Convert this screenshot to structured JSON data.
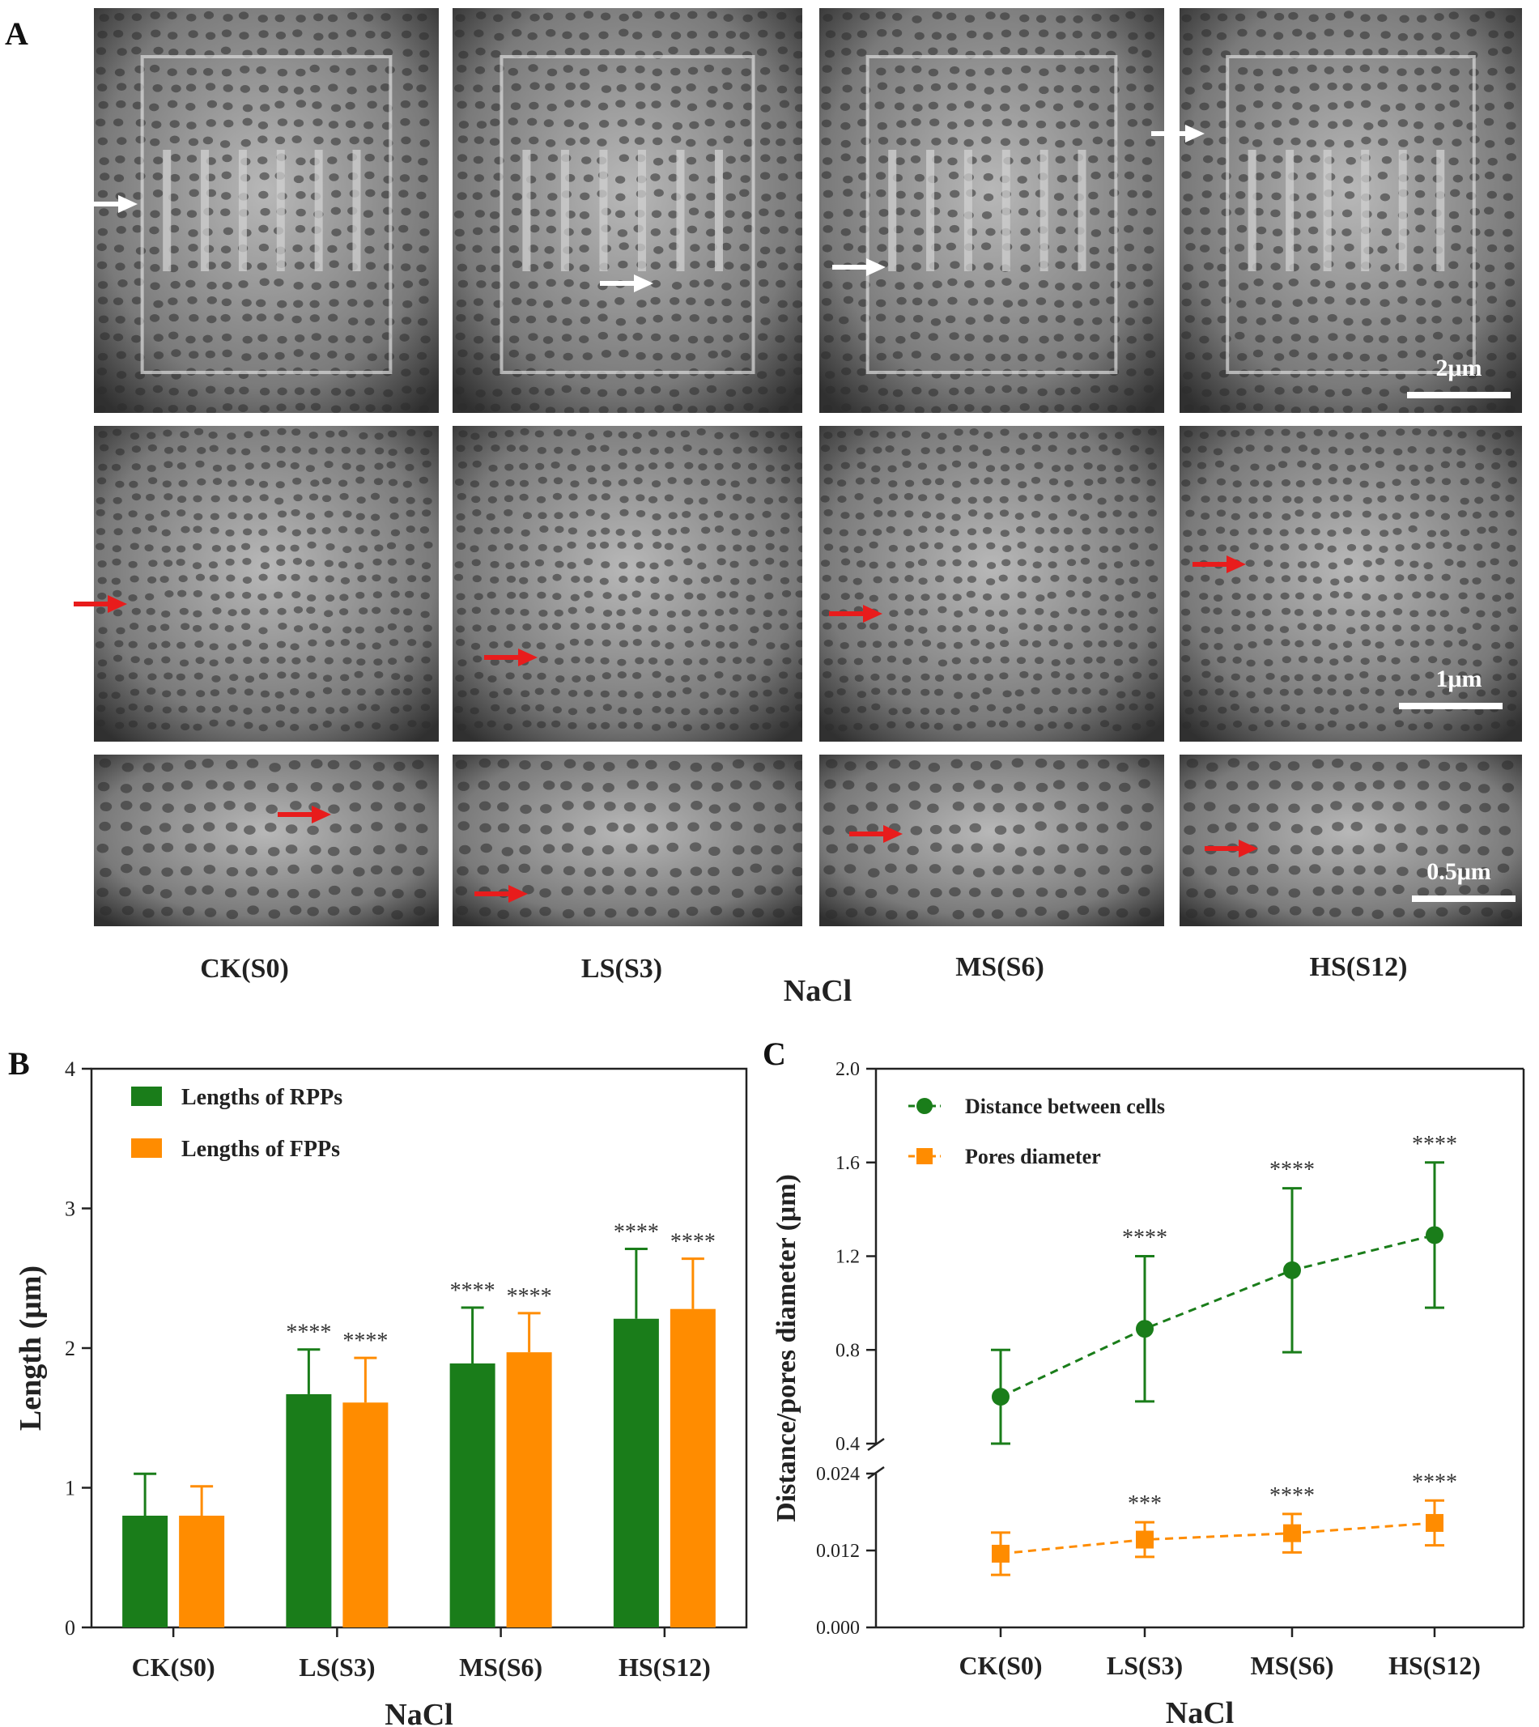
{
  "panels": {
    "a_letter": "A",
    "b_letter": "B",
    "c_letter": "C"
  },
  "micrographs": {
    "columns": [
      "CK(S0)",
      "LS(S3)",
      "MS(S6)",
      "HS(S12)"
    ],
    "group_label": "NaCl",
    "scale_bars": [
      "2μm",
      "1μm",
      "0.5μm"
    ],
    "arrow_colors": [
      "#ffffff",
      "#e81c1c",
      "#e81c1c"
    ]
  },
  "chart_data": [
    {
      "type": "bar",
      "panel": "B",
      "categories": [
        "CK(S0)",
        "LS(S3)",
        "MS(S6)",
        "HS(S12)"
      ],
      "series": [
        {
          "name": "Lengths of RPPs",
          "color": "#1a7d1a",
          "values": [
            0.8,
            1.67,
            1.89,
            2.21
          ],
          "errors": [
            0.3,
            0.32,
            0.4,
            0.5
          ],
          "significance": [
            "",
            "****",
            "****",
            "****"
          ]
        },
        {
          "name": "Lengths of FPPs",
          "color": "#ff8c00",
          "values": [
            0.8,
            1.61,
            1.97,
            2.28
          ],
          "errors": [
            0.21,
            0.32,
            0.28,
            0.36
          ],
          "significance": [
            "",
            "****",
            "****",
            "****"
          ]
        }
      ],
      "xlabel": "NaCl",
      "ylabel": "Length (μm)",
      "ylim": [
        0,
        4
      ],
      "yticks": [
        "0",
        "1",
        "2",
        "3",
        "4"
      ],
      "legend": "top-left",
      "grid": false
    },
    {
      "type": "line",
      "panel": "C",
      "categories": [
        "CK(S0)",
        "LS(S3)",
        "MS(S6)",
        "HS(S12)"
      ],
      "series": [
        {
          "name": "Distance between cells",
          "color": "#1a7d1a",
          "marker": "circle",
          "values": [
            0.6,
            0.89,
            1.14,
            1.29
          ],
          "errors": [
            0.2,
            0.31,
            0.35,
            0.31
          ],
          "significance": [
            "",
            "****",
            "****",
            "****"
          ]
        },
        {
          "name": "Pores diameter",
          "color": "#ff8c00",
          "marker": "square",
          "values": [
            0.0115,
            0.0137,
            0.0147,
            0.0163
          ],
          "errors": [
            0.0033,
            0.0027,
            0.003,
            0.0035
          ],
          "significance": [
            "",
            "***",
            "****",
            "****"
          ]
        }
      ],
      "xlabel": "NaCl",
      "ylabel": "Distance/pores diameter (μm)",
      "axis_break": true,
      "ylim_upper": [
        0.4,
        2.0
      ],
      "yticks_upper": [
        "0.4",
        "0.8",
        "1.2",
        "1.6",
        "2.0"
      ],
      "ylim_lower": [
        0.0,
        0.024
      ],
      "yticks_lower": [
        "0.000",
        "0.012",
        "0.024"
      ],
      "legend": "top-left",
      "grid": false
    }
  ]
}
